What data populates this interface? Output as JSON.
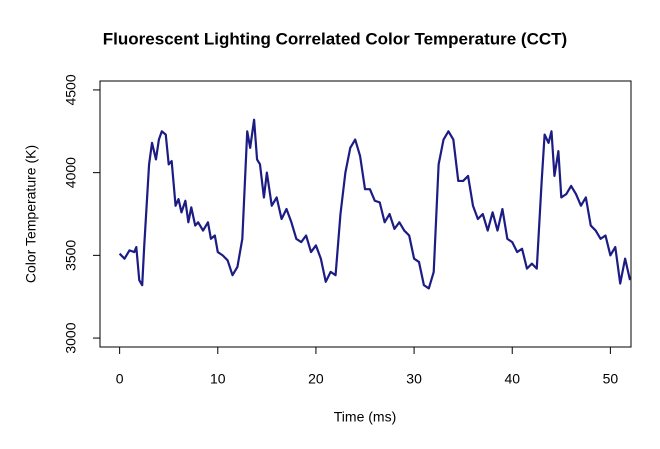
{
  "chart_data": {
    "type": "line",
    "title": "Fluorescent Lighting Correlated Color Temperature (CCT)",
    "xlabel": "Time (ms)",
    "ylabel": "Color Temperature (K)",
    "xlim": [
      -2,
      52.1
    ],
    "ylim": [
      2946,
      4554
    ],
    "xticks": [
      0,
      10,
      20,
      30,
      40,
      50
    ],
    "yticks": [
      3000,
      3500,
      4000,
      4500
    ],
    "series": [
      {
        "color": "#1c1c84",
        "x": [
          0,
          0.5,
          1,
          1.5,
          1.7,
          2,
          2.3,
          2.5,
          3,
          3.3,
          3.7,
          4,
          4.3,
          4.7,
          5,
          5.3,
          5.7,
          6,
          6.3,
          6.7,
          7,
          7.3,
          7.7,
          8,
          8.5,
          9,
          9.3,
          9.7,
          10,
          10.5,
          11,
          11.5,
          12,
          12.5,
          13,
          13.3,
          13.7,
          14,
          14.3,
          14.7,
          15,
          15.5,
          16,
          16.5,
          17,
          17.5,
          18,
          18.5,
          19,
          19.5,
          20,
          20.5,
          21,
          21.5,
          22,
          22.5,
          23,
          23.5,
          24,
          24.5,
          25,
          25.5,
          26,
          26.5,
          27,
          27.5,
          28,
          28.5,
          29,
          29.5,
          30,
          30.5,
          31,
          31.5,
          32,
          32.5,
          33,
          33.5,
          34,
          34.5,
          35,
          35.5,
          36,
          36.5,
          37,
          37.5,
          38,
          38.5,
          39,
          39.5,
          40,
          40.5,
          41,
          41.5,
          42,
          42.5,
          43,
          43.3,
          43.7,
          44,
          44.3,
          44.7,
          45,
          45.5,
          46,
          46.5,
          47,
          47.5,
          48,
          48.5,
          49,
          49.5,
          50,
          50.5,
          51,
          51.5,
          52
        ],
        "values": [
          3510,
          3480,
          3530,
          3520,
          3550,
          3350,
          3320,
          3550,
          4050,
          4180,
          4080,
          4200,
          4250,
          4230,
          4050,
          4070,
          3800,
          3840,
          3760,
          3830,
          3700,
          3790,
          3680,
          3700,
          3650,
          3700,
          3600,
          3620,
          3520,
          3500,
          3470,
          3380,
          3430,
          3600,
          4250,
          4150,
          4320,
          4080,
          4050,
          3850,
          4000,
          3800,
          3850,
          3720,
          3780,
          3700,
          3600,
          3580,
          3620,
          3520,
          3560,
          3480,
          3340,
          3400,
          3380,
          3750,
          4000,
          4150,
          4200,
          4100,
          3900,
          3900,
          3830,
          3820,
          3700,
          3750,
          3660,
          3700,
          3650,
          3620,
          3480,
          3460,
          3320,
          3300,
          3400,
          4050,
          4200,
          4250,
          4200,
          3950,
          3950,
          3980,
          3800,
          3720,
          3750,
          3650,
          3760,
          3650,
          3780,
          3600,
          3580,
          3520,
          3540,
          3420,
          3450,
          3420,
          3950,
          4230,
          4180,
          4250,
          3980,
          4130,
          3850,
          3870,
          3920,
          3870,
          3800,
          3850,
          3680,
          3650,
          3600,
          3620,
          3500,
          3550,
          3330,
          3480,
          3350
        ]
      }
    ]
  }
}
